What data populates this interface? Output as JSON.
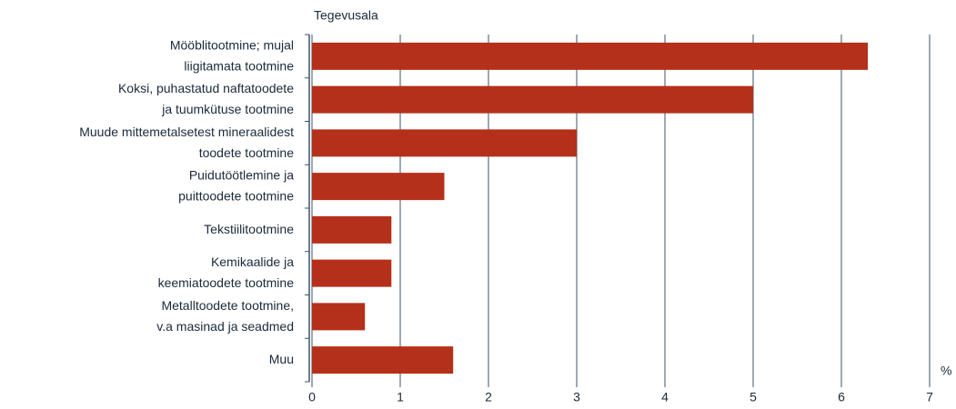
{
  "chart_data": {
    "type": "bar",
    "orientation": "horizontal",
    "y_axis_label": "Tegevusala",
    "x_axis_label": "%",
    "categories": [
      "Mööblitootmine; mujal\nliigitamata tootmine",
      "Koksi, puhastatud naftatoodete\nja tuumkütuse tootmine",
      "Muude mittemetalsetest mineraalidest\ntoodete tootmine",
      "Puidutöötlemine ja\npuittoodete tootmine",
      "Tekstiilitootmine",
      "Kemikaalide ja\nkeemiatoodete tootmine",
      "Metalltoodete tootmine,\nv.a masinad ja seadmed",
      "Muu"
    ],
    "values": [
      6.3,
      5.0,
      3.0,
      1.5,
      0.9,
      0.9,
      0.6,
      1.6
    ],
    "color": "#b5301a",
    "xlim": [
      0,
      7
    ],
    "xticks": [
      0,
      1,
      2,
      3,
      4,
      5,
      6,
      7
    ],
    "grid": true
  }
}
